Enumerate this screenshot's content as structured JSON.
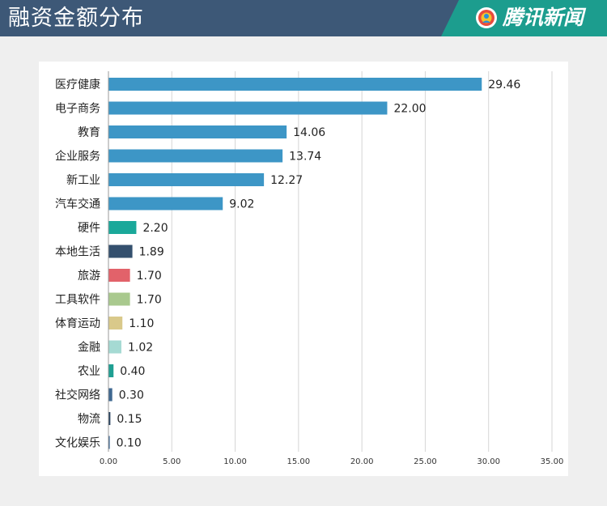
{
  "header": {
    "title": "融资金额分布",
    "brand": "腾讯新闻"
  },
  "colors": {
    "header_bg": "#3d5877",
    "brand_bg": "#1c9d8e",
    "bar_default": "#3d96c6"
  },
  "chart_data": {
    "type": "bar",
    "orientation": "horizontal",
    "title": "",
    "xlabel": "",
    "ylabel": "",
    "xlim": [
      0,
      35
    ],
    "xticks": [
      "0.00",
      "5.00",
      "10.00",
      "15.00",
      "20.00",
      "25.00",
      "30.00",
      "35.00"
    ],
    "categories": [
      "医疗健康",
      "电子商务",
      "教育",
      "企业服务",
      "新工业",
      "汽车交通",
      "硬件",
      "本地生活",
      "旅游",
      "工具软件",
      "体育运动",
      "金融",
      "农业",
      "社交网络",
      "物流",
      "文化娱乐"
    ],
    "values": [
      29.46,
      22.0,
      14.06,
      13.74,
      12.27,
      9.02,
      2.2,
      1.89,
      1.7,
      1.7,
      1.1,
      1.02,
      0.4,
      0.3,
      0.15,
      0.1
    ],
    "value_labels": [
      "29.46",
      "22.00",
      "14.06",
      "13.74",
      "12.27",
      "9.02",
      "2.20",
      "1.89",
      "1.70",
      "1.70",
      "1.10",
      "1.02",
      "0.40",
      "0.30",
      "0.15",
      "0.10"
    ],
    "bar_colors": [
      "#3d96c6",
      "#3d96c6",
      "#3d96c6",
      "#3d96c6",
      "#3d96c6",
      "#3d96c6",
      "#1aa89a",
      "#34506e",
      "#e2626a",
      "#a9c98e",
      "#d9c98a",
      "#a5dad3",
      "#1f9f92",
      "#3f6890",
      "#27415d",
      "#2f5c8a"
    ],
    "grid": true
  }
}
